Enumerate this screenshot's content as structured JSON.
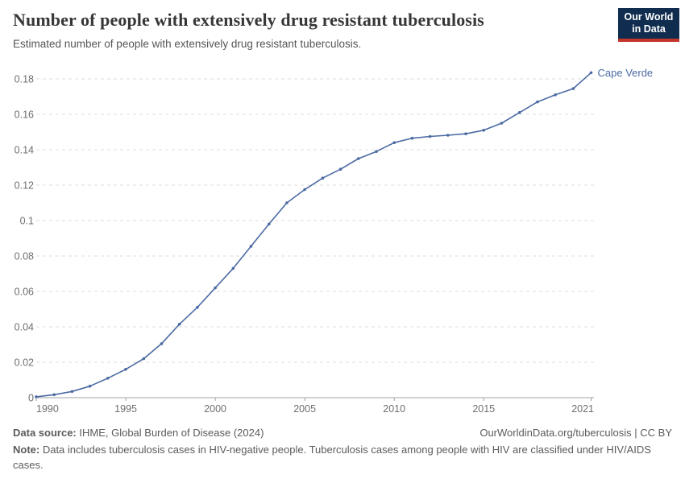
{
  "header": {
    "title": "Number of people with extensively drug resistant tuberculosis",
    "subtitle": "Estimated number of people with extensively drug resistant tuberculosis."
  },
  "logo": {
    "line1": "Our World",
    "line2": "in Data"
  },
  "chart_data": {
    "type": "line",
    "title": "Number of people with extensively drug resistant tuberculosis",
    "x": [
      1990,
      1991,
      1992,
      1993,
      1994,
      1995,
      1996,
      1997,
      1998,
      1999,
      2000,
      2001,
      2002,
      2003,
      2004,
      2005,
      2006,
      2007,
      2008,
      2009,
      2010,
      2011,
      2012,
      2013,
      2014,
      2015,
      2016,
      2017,
      2018,
      2019,
      2020,
      2021
    ],
    "series": [
      {
        "name": "Cape Verde",
        "color": "#4c6ba3",
        "values": [
          0.0005,
          0.0017,
          0.0035,
          0.0065,
          0.011,
          0.016,
          0.022,
          0.0305,
          0.0415,
          0.051,
          0.062,
          0.073,
          0.0855,
          0.098,
          0.11,
          0.1175,
          0.124,
          0.129,
          0.135,
          0.139,
          0.144,
          0.1465,
          0.1475,
          0.1482,
          0.149,
          0.151,
          0.155,
          0.161,
          0.167,
          0.171,
          0.1745,
          0.1835
        ]
      }
    ],
    "x_ticks": [
      1990,
      1995,
      2000,
      2005,
      2010,
      2015,
      2021
    ],
    "y_ticks": [
      0,
      0.02,
      0.04,
      0.06,
      0.08,
      0.1,
      0.12,
      0.14,
      0.16,
      0.18
    ],
    "xlim": [
      1990,
      2021
    ],
    "ylim": [
      0,
      0.18
    ],
    "xlabel": "",
    "ylabel": "",
    "grid": "horizontal-dashed",
    "legend": "end-of-line-label"
  },
  "footer": {
    "source_label": "Data source:",
    "source_text": " IHME, Global Burden of Disease (2024)",
    "credit": "OurWorldinData.org/tuberculosis | CC BY",
    "note_label": "Note:",
    "note_text": " Data includes tuberculosis cases in HIV-negative people. Tuberculosis cases among people with HIV are classified under HIV/AIDS cases."
  },
  "colors": {
    "line": "#4c6ba3",
    "entity_label": "#4c6ba3",
    "grid": "#dedede",
    "axis": "#a1a1a1",
    "tick_label": "#6e6e6e",
    "logo_bg": "#102d4f",
    "logo_stripe": "#c4352c"
  }
}
